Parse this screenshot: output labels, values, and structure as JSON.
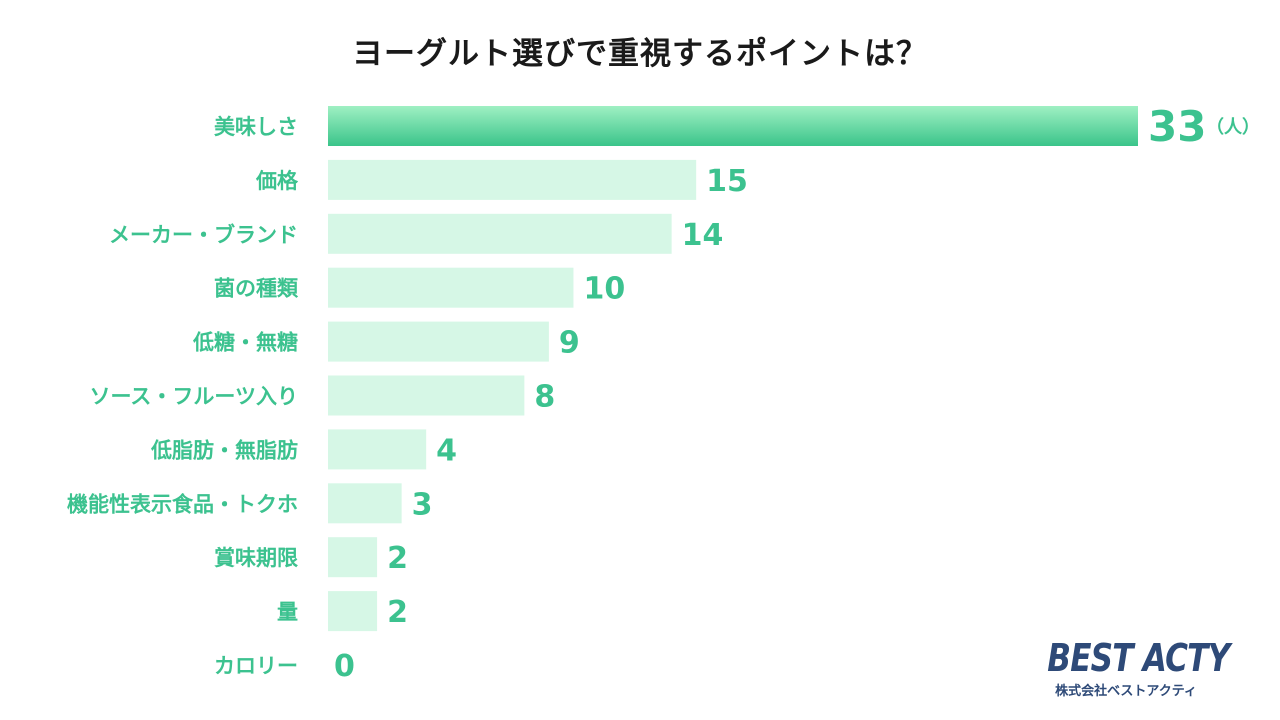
{
  "title": "ヨーグルト選びで重視するポイントは？",
  "logo": {
    "main": "BEST ACTY",
    "sub": "株式会社ベストアクティ"
  },
  "colors": {
    "accent": "#3cc28f",
    "highlight_bar_top": "#9ff0c3",
    "highlight_bar_bottom": "#3ac48a",
    "bar": "#d6f7e6",
    "title": "#1a1a1a",
    "logo": "#2e4a78"
  },
  "chart_data": {
    "type": "bar",
    "orientation": "horizontal",
    "categories": [
      "美味しさ",
      "価格",
      "メーカー・ブランド",
      "菌の種類",
      "低糖・無糖",
      "ソース・フルーツ入り",
      "低脂肪・無脂肪",
      "機能性表示食品・トクホ",
      "賞味期限",
      "量",
      "カロリー"
    ],
    "values": [
      33,
      15,
      14,
      10,
      9,
      8,
      4,
      3,
      2,
      2,
      0
    ],
    "unit": "（人）",
    "title": "ヨーグルト選びで重視するポイントは？",
    "xlim": [
      0,
      33
    ],
    "grid": false,
    "legend": false,
    "highlight_index": 0
  }
}
